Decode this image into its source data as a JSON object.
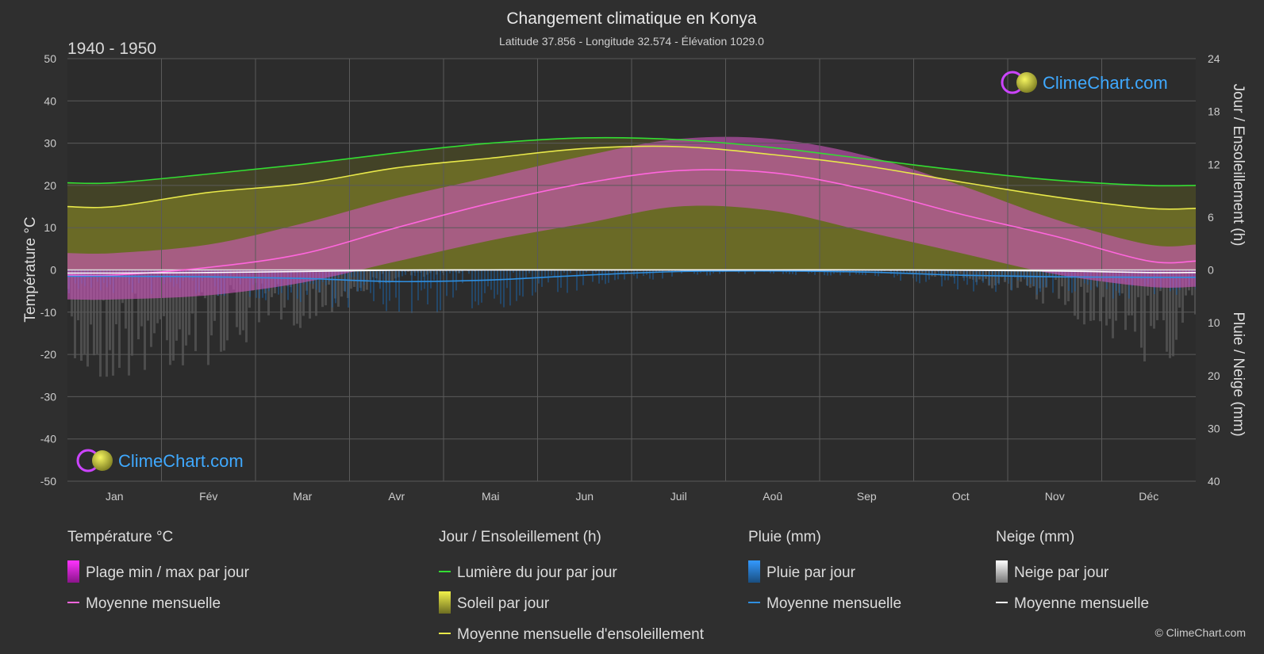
{
  "header": {
    "title": "Changement climatique en Konya",
    "subtitle": "Latitude 37.856 - Longitude 32.574 - Élévation 1029.0",
    "period": "1940 - 1950"
  },
  "brand": {
    "name": "ClimeChart.com",
    "copyright": "© ClimeChart.com"
  },
  "axes": {
    "left_label": "Température °C",
    "right_top_label": "Jour / Ensoleillement (h)",
    "right_bottom_label": "Pluie / Neige (mm)",
    "left_ticks": [
      50,
      40,
      30,
      20,
      10,
      0,
      -10,
      -20,
      -30,
      -40,
      -50
    ],
    "right_top_ticks": [
      24,
      18,
      12,
      6,
      0
    ],
    "right_bottom_ticks": [
      10,
      20,
      30,
      40
    ]
  },
  "legend": {
    "groups": [
      {
        "title": "Température °C",
        "items": [
          {
            "label": "Plage min / max par jour",
            "swatch": "magenta-gradient"
          },
          {
            "label": "Moyenne mensuelle",
            "swatch": "pink-line"
          }
        ]
      },
      {
        "title": "Jour / Ensoleillement (h)",
        "items": [
          {
            "label": "Lumière du jour par jour",
            "swatch": "green-line"
          },
          {
            "label": "Soleil par jour",
            "swatch": "yellow-gradient"
          },
          {
            "label": "Moyenne mensuelle d'ensoleillement",
            "swatch": "yellow-line"
          }
        ]
      },
      {
        "title": "Pluie (mm)",
        "items": [
          {
            "label": "Pluie par jour",
            "swatch": "blue-gradient"
          },
          {
            "label": "Moyenne mensuelle",
            "swatch": "blue-line"
          }
        ]
      },
      {
        "title": "Neige (mm)",
        "items": [
          {
            "label": "Neige par jour",
            "swatch": "white-gradient"
          },
          {
            "label": "Moyenne mensuelle",
            "swatch": "white-line"
          }
        ]
      }
    ]
  },
  "chart_data": {
    "type": "line",
    "categories": [
      "Jan",
      "Fév",
      "Mar",
      "Avr",
      "Mai",
      "Jun",
      "Juil",
      "Aoû",
      "Sep",
      "Oct",
      "Nov",
      "Déc"
    ],
    "ylim": [
      -50,
      50
    ],
    "y2_sun_lim": [
      0,
      24
    ],
    "y2_precip_lim": [
      0,
      40
    ],
    "grid": true,
    "series": [
      {
        "name": "Lumière du jour par jour",
        "axis": "hours",
        "color": "#33dd33",
        "values": [
          9.9,
          10.9,
          12.0,
          13.3,
          14.4,
          15.0,
          14.8,
          13.9,
          12.6,
          11.3,
          10.2,
          9.6
        ]
      },
      {
        "name": "Moyenne mensuelle d'ensoleillement",
        "axis": "hours",
        "color": "#e8e84a",
        "values": [
          7.2,
          8.8,
          9.8,
          11.6,
          12.7,
          13.8,
          14.0,
          13.1,
          11.8,
          10.0,
          8.3,
          7.0
        ]
      },
      {
        "name": "Température moyenne mensuelle",
        "axis": "temp",
        "color": "#ff66dd",
        "values": [
          -1.2,
          0.6,
          3.8,
          10.0,
          15.8,
          20.5,
          23.5,
          23.0,
          19.0,
          13.2,
          8.0,
          2.1
        ]
      },
      {
        "name": "Pluie moyenne mensuelle",
        "axis": "precip",
        "color": "#2f8fe0",
        "values": [
          1.2,
          1.3,
          1.6,
          2.2,
          1.9,
          1.0,
          0.3,
          0.2,
          0.4,
          1.0,
          1.3,
          1.4
        ]
      },
      {
        "name": "Neige moyenne mensuelle",
        "axis": "precip",
        "color": "#ffffff",
        "values": [
          0.6,
          0.5,
          0.3,
          0.05,
          0,
          0,
          0,
          0,
          0,
          0.05,
          0.2,
          0.5
        ]
      }
    ],
    "temp_range_daily": {
      "max": [
        4,
        6,
        11,
        17,
        22,
        27,
        31,
        31,
        27,
        20,
        12,
        6
      ],
      "min": [
        -7,
        -6,
        -3,
        2,
        7,
        11,
        15,
        14,
        9,
        4,
        -1,
        -4
      ]
    }
  }
}
